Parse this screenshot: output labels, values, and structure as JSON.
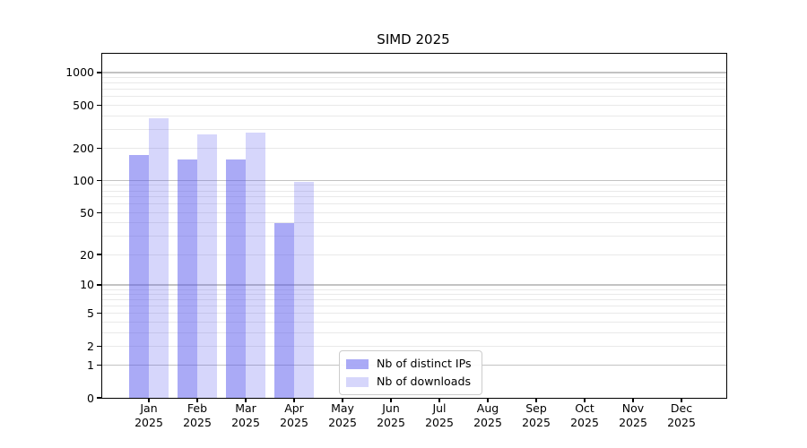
{
  "title": "SIMD 2025",
  "chart_data": {
    "type": "bar",
    "title": "SIMD 2025",
    "scale": "log(1+x)",
    "ylim": [
      0,
      1500
    ],
    "y_ticks": [
      0,
      1,
      2,
      5,
      10,
      20,
      50,
      100,
      200,
      500,
      1000
    ],
    "grid": {
      "decade_lines": [
        1,
        10,
        100,
        1000
      ],
      "minor_lines": [
        2,
        3,
        4,
        5,
        6,
        7,
        8,
        9,
        20,
        30,
        40,
        50,
        60,
        70,
        80,
        90,
        200,
        300,
        400,
        500,
        600,
        700,
        800,
        900
      ]
    },
    "categories": [
      {
        "month": "Jan",
        "year": "2025"
      },
      {
        "month": "Feb",
        "year": "2025"
      },
      {
        "month": "Mar",
        "year": "2025"
      },
      {
        "month": "Apr",
        "year": "2025"
      },
      {
        "month": "May",
        "year": "2025"
      },
      {
        "month": "Jun",
        "year": "2025"
      },
      {
        "month": "Jul",
        "year": "2025"
      },
      {
        "month": "Aug",
        "year": "2025"
      },
      {
        "month": "Sep",
        "year": "2025"
      },
      {
        "month": "Oct",
        "year": "2025"
      },
      {
        "month": "Nov",
        "year": "2025"
      },
      {
        "month": "Dec",
        "year": "2025"
      }
    ],
    "series": [
      {
        "name": "Nb of distinct IPs",
        "color": "rgba(85,85,238,0.5)",
        "values": [
          172,
          158,
          158,
          40,
          0,
          0,
          0,
          0,
          0,
          0,
          0,
          0
        ]
      },
      {
        "name": "Nb of downloads",
        "color": "rgba(85,85,238,0.24)",
        "values": [
          380,
          270,
          280,
          97,
          0,
          0,
          0,
          0,
          0,
          0,
          0,
          0
        ]
      }
    ],
    "legend_position": "lower center"
  },
  "legend": {
    "items": [
      {
        "label": "Nb of distinct IPs",
        "color": "rgba(85,85,238,0.5)"
      },
      {
        "label": "Nb of downloads",
        "color": "rgba(85,85,238,0.24)"
      }
    ]
  },
  "colors": {
    "spine": "#000000",
    "decade_grid": "#c3c3c3",
    "minor_grid": "#e9e9e9",
    "background": "#ffffff"
  }
}
